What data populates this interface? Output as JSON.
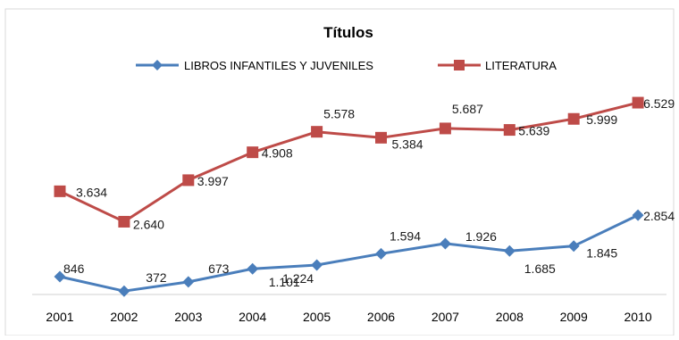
{
  "chart_data": {
    "type": "line",
    "title": "Títulos",
    "x": [
      "2001",
      "2002",
      "2003",
      "2004",
      "2005",
      "2006",
      "2007",
      "2008",
      "2009",
      "2010"
    ],
    "series": [
      {
        "name": "LIBROS INFANTILES Y JUVENILES",
        "values": [
          846,
          372,
          673,
          1101,
          1224,
          1594,
          1926,
          1685,
          1845,
          2854
        ],
        "labels": [
          "846",
          "372",
          "673",
          "1.101",
          "1.224",
          "1.594",
          "1.926",
          "1.685",
          "1.845",
          "2.854"
        ],
        "color": "#4a7ebb",
        "marker": "diamond"
      },
      {
        "name": "LITERATURA",
        "values": [
          3634,
          2640,
          3997,
          4908,
          5578,
          5384,
          5687,
          5639,
          5999,
          6529
        ],
        "labels": [
          "3.634",
          "2.640",
          "3.997",
          "4.908",
          "5.578",
          "5.384",
          "5.687",
          "5.639",
          "5.999",
          "6.529"
        ],
        "color": "#be4b48",
        "marker": "square"
      }
    ],
    "ylim": [
      0,
      6800
    ],
    "grid": false,
    "legend": "top"
  }
}
